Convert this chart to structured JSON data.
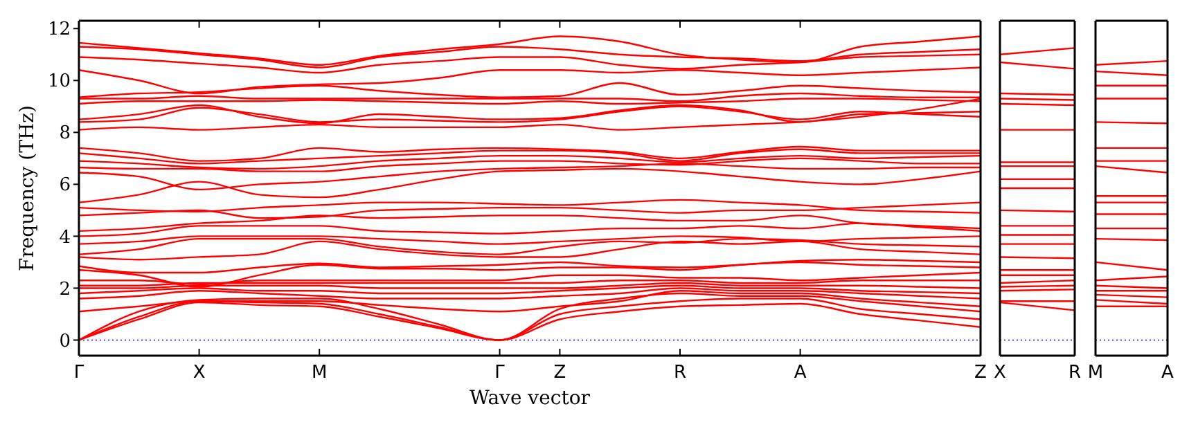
{
  "chart_data": [
    {
      "type": "line",
      "xlabel": "Wave vector",
      "ylabel": "Frequency (THz)",
      "ylim": [
        -0.6,
        12.3
      ],
      "yticks": [
        0,
        2,
        4,
        6,
        8,
        10,
        12
      ],
      "categories": [
        "Γ",
        null,
        "X",
        null,
        "M",
        null,
        null,
        "Γ",
        "Z",
        null,
        "R",
        null,
        "A",
        null,
        null,
        "Z"
      ],
      "ref_lines": [
        {
          "axis": "y",
          "value": 0,
          "color": "#0000ff",
          "line_style": "dotted"
        }
      ],
      "series": [
        {
          "color": "#ff0000",
          "values": [
            0,
            0.8,
            1.45,
            1.35,
            1.3,
            0.9,
            0.45,
            0,
            0.8,
            1.1,
            1.3,
            1.35,
            1.4,
            1.0,
            0.75,
            0.5
          ]
        },
        {
          "color": "#ff0000",
          "values": [
            0,
            0.9,
            1.5,
            1.45,
            1.4,
            1.0,
            0.5,
            0,
            1.0,
            1.3,
            1.5,
            1.6,
            1.6,
            1.2,
            1.0,
            0.8
          ]
        },
        {
          "color": "#ff0000",
          "values": [
            0,
            1.1,
            1.55,
            1.6,
            1.6,
            1.2,
            0.6,
            0,
            1.2,
            1.6,
            1.8,
            1.7,
            1.7,
            1.5,
            1.3,
            1.1
          ]
        },
        {
          "color": "#ff0000",
          "values": [
            1.1,
            1.3,
            1.5,
            1.5,
            1.5,
            1.35,
            1.2,
            1.1,
            1.3,
            1.5,
            1.9,
            1.8,
            1.8,
            1.6,
            1.45,
            1.3
          ]
        },
        {
          "color": "#ff0000",
          "values": [
            1.6,
            1.7,
            1.9,
            1.8,
            1.7,
            1.6,
            1.6,
            1.6,
            1.7,
            1.8,
            2.0,
            1.9,
            1.9,
            1.8,
            1.7,
            1.6
          ]
        },
        {
          "color": "#ff0000",
          "values": [
            1.8,
            1.9,
            2.0,
            1.9,
            1.9,
            1.8,
            1.8,
            1.8,
            1.9,
            2.0,
            2.1,
            2.0,
            2.0,
            1.9,
            1.85,
            1.8
          ]
        },
        {
          "color": "#ff0000",
          "values": [
            2.0,
            2.0,
            2.1,
            2.1,
            2.1,
            2.0,
            2.0,
            2.0,
            2.0,
            2.1,
            2.2,
            2.1,
            2.1,
            2.1,
            2.05,
            2.0
          ]
        },
        {
          "color": "#ff0000",
          "values": [
            2.1,
            2.1,
            2.2,
            2.2,
            2.2,
            2.2,
            2.2,
            2.2,
            2.2,
            2.3,
            2.3,
            2.2,
            2.2,
            2.3,
            2.3,
            2.3
          ]
        },
        {
          "color": "#ff0000",
          "values": [
            2.3,
            2.3,
            2.15,
            2.3,
            2.3,
            2.3,
            2.3,
            2.3,
            2.5,
            2.5,
            2.4,
            2.4,
            2.3,
            2.4,
            2.5,
            2.6
          ]
        },
        {
          "color": "#ff0000",
          "values": [
            2.7,
            2.5,
            2.05,
            2.5,
            2.9,
            2.75,
            2.75,
            2.7,
            2.8,
            2.8,
            2.7,
            2.9,
            3.0,
            2.9,
            2.85,
            2.8
          ]
        },
        {
          "color": "#ff0000",
          "values": [
            2.85,
            2.6,
            2.6,
            2.8,
            2.95,
            2.8,
            2.85,
            2.9,
            3.0,
            2.85,
            2.8,
            2.9,
            3.05,
            3.1,
            3.05,
            3.0
          ]
        },
        {
          "color": "#ff0000",
          "values": [
            3.2,
            3.1,
            3.2,
            3.3,
            3.8,
            3.5,
            3.3,
            3.2,
            3.2,
            3.5,
            3.8,
            3.7,
            3.8,
            3.5,
            3.4,
            3.3
          ]
        },
        {
          "color": "#ff0000",
          "values": [
            3.3,
            3.5,
            3.9,
            3.9,
            3.9,
            3.6,
            3.4,
            3.3,
            3.6,
            3.8,
            3.75,
            3.9,
            3.85,
            3.7,
            3.65,
            3.6
          ]
        },
        {
          "color": "#ff0000",
          "values": [
            3.7,
            3.8,
            4.0,
            4.0,
            4.0,
            3.9,
            3.8,
            3.7,
            3.8,
            3.9,
            4.0,
            3.95,
            3.8,
            3.9,
            3.95,
            4.0
          ]
        },
        {
          "color": "#ff0000",
          "values": [
            4.0,
            4.1,
            4.4,
            4.4,
            4.4,
            4.2,
            4.15,
            4.1,
            4.2,
            4.3,
            4.3,
            4.4,
            4.3,
            4.5,
            4.35,
            4.2
          ]
        },
        {
          "color": "#ff0000",
          "values": [
            4.2,
            4.3,
            4.5,
            4.6,
            4.8,
            4.7,
            4.75,
            4.8,
            4.8,
            4.7,
            4.6,
            4.6,
            4.8,
            4.5,
            4.4,
            4.3
          ]
        },
        {
          "color": "#ff0000",
          "values": [
            4.8,
            4.9,
            5.0,
            4.7,
            4.75,
            5.0,
            5.05,
            5.1,
            5.1,
            5.0,
            4.9,
            5.0,
            5.0,
            5.1,
            5.2,
            5.3
          ]
        },
        {
          "color": "#ff0000",
          "values": [
            5.1,
            5.0,
            4.95,
            5.1,
            5.2,
            5.3,
            5.3,
            5.25,
            5.2,
            5.3,
            5.4,
            5.3,
            5.2,
            5.0,
            4.95,
            4.9
          ]
        },
        {
          "color": "#ff0000",
          "values": [
            5.3,
            5.6,
            6.1,
            5.6,
            5.5,
            5.8,
            6.2,
            6.5,
            6.55,
            6.6,
            6.5,
            6.3,
            6.1,
            6.0,
            6.2,
            6.5
          ]
        },
        {
          "color": "#ff0000",
          "values": [
            6.45,
            6.3,
            5.8,
            6.0,
            6.1,
            6.3,
            6.5,
            6.6,
            6.65,
            6.7,
            6.8,
            6.7,
            6.6,
            6.6,
            6.65,
            6.65
          ]
        },
        {
          "color": "#ff0000",
          "values": [
            6.65,
            6.6,
            6.6,
            6.5,
            6.5,
            6.7,
            6.8,
            6.9,
            6.9,
            6.8,
            6.75,
            6.9,
            7.0,
            6.9,
            6.8,
            6.8
          ]
        },
        {
          "color": "#ff0000",
          "values": [
            6.9,
            6.8,
            6.65,
            6.6,
            6.7,
            6.9,
            7.0,
            7.1,
            7.1,
            7.0,
            6.85,
            7.0,
            7.1,
            7.0,
            7.05,
            7.1
          ]
        },
        {
          "color": "#ff0000",
          "values": [
            7.2,
            7.0,
            6.8,
            6.9,
            7.0,
            7.1,
            7.2,
            7.3,
            7.3,
            7.2,
            6.9,
            7.2,
            7.35,
            7.2,
            7.2,
            7.2
          ]
        },
        {
          "color": "#ff0000",
          "values": [
            7.4,
            7.2,
            6.9,
            7.0,
            7.4,
            7.25,
            7.35,
            7.4,
            7.35,
            7.25,
            7.0,
            7.25,
            7.45,
            7.3,
            7.3,
            7.3
          ]
        },
        {
          "color": "#ff0000",
          "values": [
            8.1,
            8.2,
            8.1,
            8.2,
            8.3,
            8.2,
            8.2,
            8.2,
            8.3,
            8.1,
            8.2,
            8.3,
            8.4,
            8.6,
            8.9,
            9.3
          ]
        },
        {
          "color": "#ff0000",
          "values": [
            8.4,
            8.5,
            8.95,
            8.7,
            8.4,
            8.5,
            8.45,
            8.4,
            8.5,
            8.8,
            9.0,
            8.8,
            8.5,
            8.8,
            8.7,
            8.6
          ]
        },
        {
          "color": "#ff0000",
          "values": [
            8.5,
            8.7,
            9.05,
            8.6,
            8.35,
            8.7,
            8.6,
            8.5,
            8.55,
            8.85,
            9.05,
            8.85,
            8.4,
            8.7,
            8.75,
            8.8
          ]
        },
        {
          "color": "#ff0000",
          "values": [
            9.1,
            9.2,
            9.2,
            9.2,
            9.25,
            9.2,
            9.15,
            9.1,
            9.2,
            9.1,
            9.15,
            9.2,
            9.3,
            9.3,
            9.25,
            9.2
          ]
        },
        {
          "color": "#ff0000",
          "values": [
            9.3,
            9.3,
            9.4,
            9.3,
            9.3,
            9.3,
            9.3,
            9.3,
            9.3,
            9.3,
            9.2,
            9.4,
            9.5,
            9.4,
            9.35,
            9.35
          ]
        },
        {
          "color": "#ff0000",
          "values": [
            9.35,
            9.5,
            9.55,
            9.7,
            9.8,
            9.6,
            9.45,
            9.35,
            9.4,
            9.9,
            9.45,
            9.6,
            9.8,
            9.7,
            9.6,
            9.55
          ]
        },
        {
          "color": "#ff0000",
          "values": [
            10.4,
            10.0,
            9.5,
            9.75,
            9.85,
            9.9,
            10.1,
            10.4,
            10.4,
            10.3,
            10.4,
            10.3,
            10.2,
            10.3,
            10.4,
            10.5
          ]
        },
        {
          "color": "#ff0000",
          "values": [
            10.9,
            10.8,
            10.65,
            10.5,
            10.3,
            10.6,
            10.75,
            10.9,
            10.9,
            10.6,
            10.45,
            10.6,
            10.7,
            10.9,
            10.95,
            11.0
          ]
        },
        {
          "color": "#ff0000",
          "values": [
            11.3,
            11.2,
            11.0,
            10.8,
            10.5,
            10.9,
            11.1,
            11.3,
            11.2,
            11.0,
            10.9,
            10.85,
            10.75,
            11.0,
            11.1,
            11.2
          ]
        },
        {
          "color": "#ff0000",
          "values": [
            11.45,
            11.25,
            11.05,
            10.85,
            10.6,
            10.95,
            11.2,
            11.4,
            11.7,
            11.5,
            11.0,
            10.8,
            10.7,
            11.3,
            11.5,
            11.7
          ]
        }
      ]
    },
    {
      "type": "line",
      "tick_labels": "x",
      "ylim": [
        -0.6,
        12.3
      ],
      "categories": [
        "X",
        "R"
      ],
      "ref_lines": [
        {
          "axis": "y",
          "value": 0,
          "color": "#0000ff",
          "line_style": "dotted"
        }
      ],
      "series": [
        {
          "color": "#ff0000",
          "values": [
            11.0,
            11.25
          ]
        },
        {
          "color": "#ff0000",
          "values": [
            10.7,
            10.45
          ]
        },
        {
          "color": "#ff0000",
          "values": [
            9.5,
            9.45
          ]
        },
        {
          "color": "#ff0000",
          "values": [
            9.3,
            9.25
          ]
        },
        {
          "color": "#ff0000",
          "values": [
            9.1,
            9.05
          ]
        },
        {
          "color": "#ff0000",
          "values": [
            8.1,
            8.1
          ]
        },
        {
          "color": "#ff0000",
          "values": [
            6.85,
            6.85
          ]
        },
        {
          "color": "#ff0000",
          "values": [
            6.7,
            6.7
          ]
        },
        {
          "color": "#ff0000",
          "values": [
            6.2,
            6.2
          ]
        },
        {
          "color": "#ff0000",
          "values": [
            5.85,
            5.85
          ]
        },
        {
          "color": "#ff0000",
          "values": [
            5.0,
            4.95
          ]
        },
        {
          "color": "#ff0000",
          "values": [
            4.4,
            4.4
          ]
        },
        {
          "color": "#ff0000",
          "values": [
            4.05,
            4.05
          ]
        },
        {
          "color": "#ff0000",
          "values": [
            3.7,
            3.7
          ]
        },
        {
          "color": "#ff0000",
          "values": [
            3.2,
            3.15
          ]
        },
        {
          "color": "#ff0000",
          "values": [
            2.7,
            2.7
          ]
        },
        {
          "color": "#ff0000",
          "values": [
            2.5,
            2.5
          ]
        },
        {
          "color": "#ff0000",
          "values": [
            2.2,
            2.3
          ]
        },
        {
          "color": "#ff0000",
          "values": [
            2.05,
            2.1
          ]
        },
        {
          "color": "#ff0000",
          "values": [
            1.9,
            1.95
          ]
        },
        {
          "color": "#ff0000",
          "values": [
            1.5,
            1.5
          ]
        },
        {
          "color": "#ff0000",
          "values": [
            1.45,
            1.15
          ]
        }
      ]
    },
    {
      "type": "line",
      "tick_labels": "x",
      "ylim": [
        -0.6,
        12.3
      ],
      "categories": [
        "M",
        "A"
      ],
      "ref_lines": [
        {
          "axis": "y",
          "value": 0,
          "color": "#0000ff",
          "line_style": "dotted"
        }
      ],
      "series": [
        {
          "color": "#ff0000",
          "values": [
            10.6,
            10.75
          ]
        },
        {
          "color": "#ff0000",
          "values": [
            10.35,
            10.2
          ]
        },
        {
          "color": "#ff0000",
          "values": [
            9.8,
            9.8
          ]
        },
        {
          "color": "#ff0000",
          "values": [
            9.3,
            9.3
          ]
        },
        {
          "color": "#ff0000",
          "values": [
            8.4,
            8.35
          ]
        },
        {
          "color": "#ff0000",
          "values": [
            7.4,
            7.4
          ]
        },
        {
          "color": "#ff0000",
          "values": [
            6.9,
            6.9
          ]
        },
        {
          "color": "#ff0000",
          "values": [
            6.7,
            6.45
          ]
        },
        {
          "color": "#ff0000",
          "values": [
            5.55,
            5.55
          ]
        },
        {
          "color": "#ff0000",
          "values": [
            5.3,
            5.3
          ]
        },
        {
          "color": "#ff0000",
          "values": [
            4.85,
            4.85
          ]
        },
        {
          "color": "#ff0000",
          "values": [
            4.3,
            4.3
          ]
        },
        {
          "color": "#ff0000",
          "values": [
            3.9,
            3.85
          ]
        },
        {
          "color": "#ff0000",
          "values": [
            3.0,
            2.7
          ]
        },
        {
          "color": "#ff0000",
          "values": [
            2.3,
            2.45
          ]
        },
        {
          "color": "#ff0000",
          "values": [
            2.1,
            2.0
          ]
        },
        {
          "color": "#ff0000",
          "values": [
            1.9,
            1.9
          ]
        },
        {
          "color": "#ff0000",
          "values": [
            1.75,
            1.65
          ]
        },
        {
          "color": "#ff0000",
          "values": [
            1.55,
            1.4
          ]
        },
        {
          "color": "#ff0000",
          "values": [
            1.3,
            1.3
          ]
        }
      ]
    }
  ]
}
